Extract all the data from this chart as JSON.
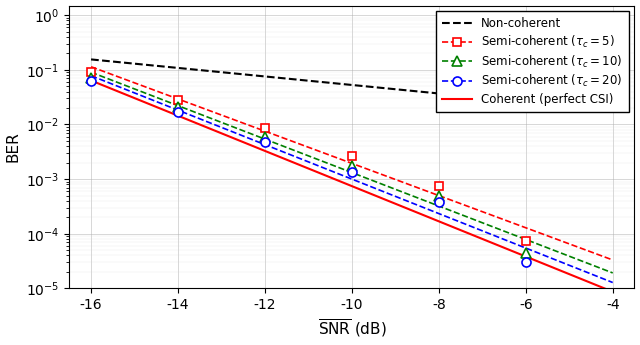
{
  "snr_points": [
    -16,
    -14,
    -12,
    -10,
    -8,
    -6
  ],
  "xlim": [
    -16.5,
    -3.5
  ],
  "ylim": [
    1e-05,
    1.5
  ],
  "xlabel": "$\\overline{\\mathrm{SNR}}$ (dB)",
  "ylabel": "BER",
  "xticks": [
    -16,
    -14,
    -12,
    -10,
    -8,
    -6,
    -4
  ],
  "background_color": "#ffffff",
  "non_coherent": {
    "snr_at_minus16": -0.83,
    "slope": 0.275
  },
  "semi5": {
    "points_ber": [
      0.09,
      0.028,
      0.0085,
      0.0026,
      0.00075,
      7.5e-05
    ],
    "color": "red"
  },
  "semi10": {
    "points_ber": [
      0.072,
      0.021,
      0.006,
      0.00175,
      0.0005,
      4.5e-05
    ],
    "color": "green"
  },
  "semi20": {
    "points_ber": [
      0.062,
      0.017,
      0.0048,
      0.00135,
      0.00038,
      3e-05
    ],
    "color": "blue"
  },
  "coherent": {
    "points_ber": [
      0.05,
      0.013,
      0.0038,
      0.00105,
      0.00028,
      2e-05
    ],
    "color": "red"
  }
}
